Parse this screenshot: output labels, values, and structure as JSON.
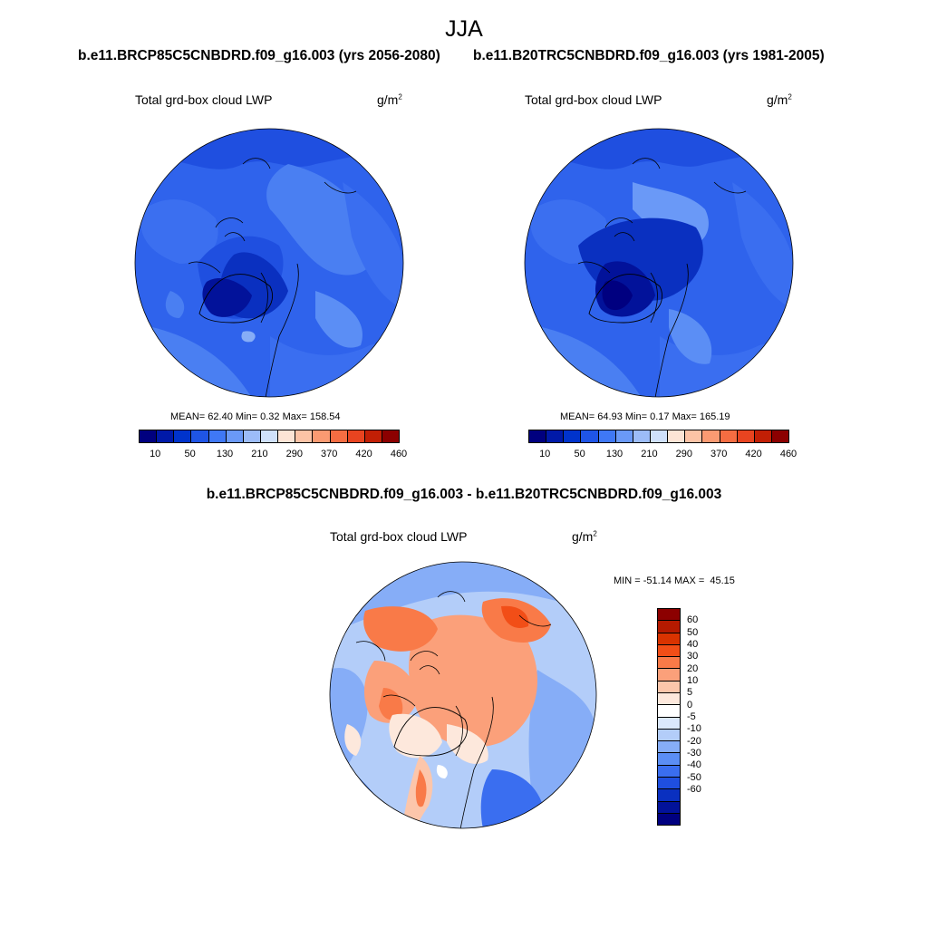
{
  "season": "JJA",
  "panels": [
    {
      "case_title": "b.e11.BRCP85C5CNBDRD.f09_g16.003 (yrs 2056-2080)",
      "var_label": "Total grd-box cloud LWP",
      "units_base": "g/m",
      "units_exp": "2",
      "mean_label": "MEAN=",
      "mean_value": "62.40",
      "min_label": "Min=",
      "min_value": "0.32",
      "max_label": "Max=",
      "max_value": "158.54"
    },
    {
      "case_title": "b.e11.B20TRC5CNBDRD.f09_g16.003 (yrs 1981-2005)",
      "var_label": "Total grd-box cloud LWP",
      "units_base": "g/m",
      "units_exp": "2",
      "mean_label": "MEAN=",
      "mean_value": "64.93",
      "min_label": "Min=",
      "min_value": "0.17",
      "max_label": "Max=",
      "max_value": "165.19"
    }
  ],
  "absolute_colorbar": {
    "colors": [
      "#00007f",
      "#0019a8",
      "#0033cc",
      "#1f55e6",
      "#3f78f5",
      "#6a99f7",
      "#9cbcf8",
      "#cfe0fa",
      "#fde4d5",
      "#fcc3a6",
      "#fa9a72",
      "#f56d42",
      "#e84420",
      "#c21f05",
      "#8c0000"
    ],
    "tick_labels": [
      "10",
      "50",
      "130",
      "210",
      "290",
      "370",
      "420",
      "460"
    ]
  },
  "diff": {
    "title": "b.e11.BRCP85C5CNBDRD.f09_g16.003 - b.e11.B20TRC5CNBDRD.f09_g16.003",
    "var_label": "Total grd-box cloud LWP",
    "units_base": "g/m",
    "units_exp": "2",
    "min_max_label": "MIN = -51.14 MAX =  45.15",
    "colorbar": {
      "colors_top_to_bottom": [
        "#8c0000",
        "#b51a00",
        "#d93300",
        "#f24e17",
        "#f97a48",
        "#fba07a",
        "#fcc6ab",
        "#fde8dc",
        "#ffffff",
        "#dbe8fc",
        "#b3cdf9",
        "#86adf7",
        "#5b8ef5",
        "#3a6ef0",
        "#1f4fe0",
        "#0a30c0",
        "#02129a",
        "#000080"
      ],
      "labels_top_to_bottom": [
        "60",
        "50",
        "40",
        "30",
        "20",
        "10",
        "5",
        "0",
        "-5",
        "-10",
        "-20",
        "-30",
        "-40",
        "-50",
        "-60"
      ]
    }
  }
}
